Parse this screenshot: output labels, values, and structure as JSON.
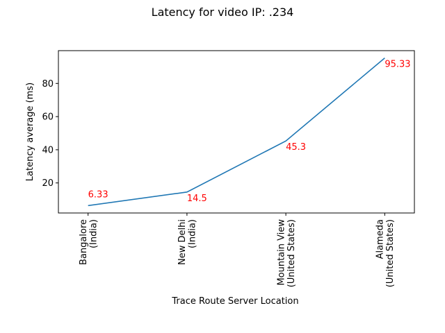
{
  "chart_data": {
    "type": "line",
    "title": "Latency for video IP: .234",
    "xlabel": "Trace Route Server Location",
    "ylabel": "Latency average (ms)",
    "categories": [
      [
        "Bangalore",
        "(India)"
      ],
      [
        "New Delhi",
        "(India)"
      ],
      [
        "Mountain View",
        "(United States)"
      ],
      [
        "Alameda",
        "(United States)"
      ]
    ],
    "series": [
      {
        "values": [
          6.33,
          14.5,
          45.3,
          95.33
        ],
        "data_labels": [
          "6.33",
          "14.5",
          "45.3",
          "95.33"
        ],
        "color": "#1f77b4"
      }
    ],
    "data_label_color": "#ff0000",
    "ylim": [
      1.88,
      99.78
    ],
    "yticks": [
      20,
      40,
      60,
      80
    ],
    "ytick_labels": [
      "20",
      "40",
      "60",
      "80"
    ],
    "grid": false,
    "legend": "none"
  }
}
